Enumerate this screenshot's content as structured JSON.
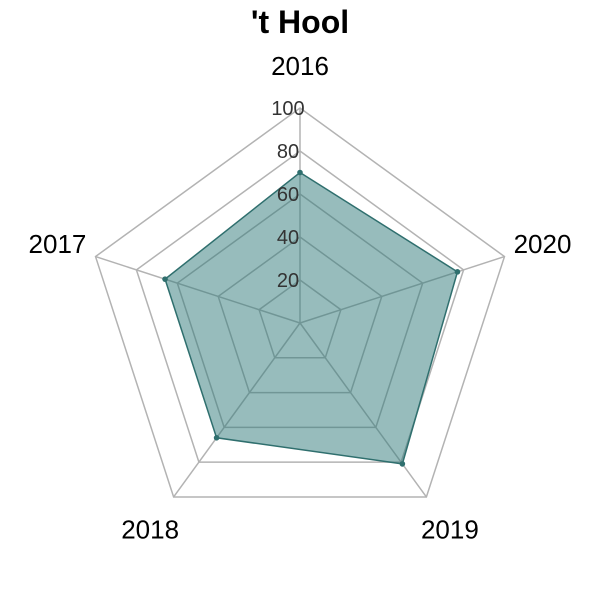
{
  "chart_data": {
    "type": "radar",
    "title": "'t Hool",
    "categories": [
      "2016",
      "2020",
      "2019",
      "2018",
      "2017"
    ],
    "values": [
      70,
      77,
      81,
      66,
      66
    ],
    "rlim": [
      0,
      100
    ],
    "ticks": [
      20,
      40,
      60,
      80,
      100
    ],
    "tick_labels": [
      "20",
      "40",
      "60",
      "80",
      "100"
    ],
    "colors": {
      "fill": "#2f7a79",
      "stroke": "#2f6f6e",
      "grid": "#b3b3b3"
    }
  }
}
